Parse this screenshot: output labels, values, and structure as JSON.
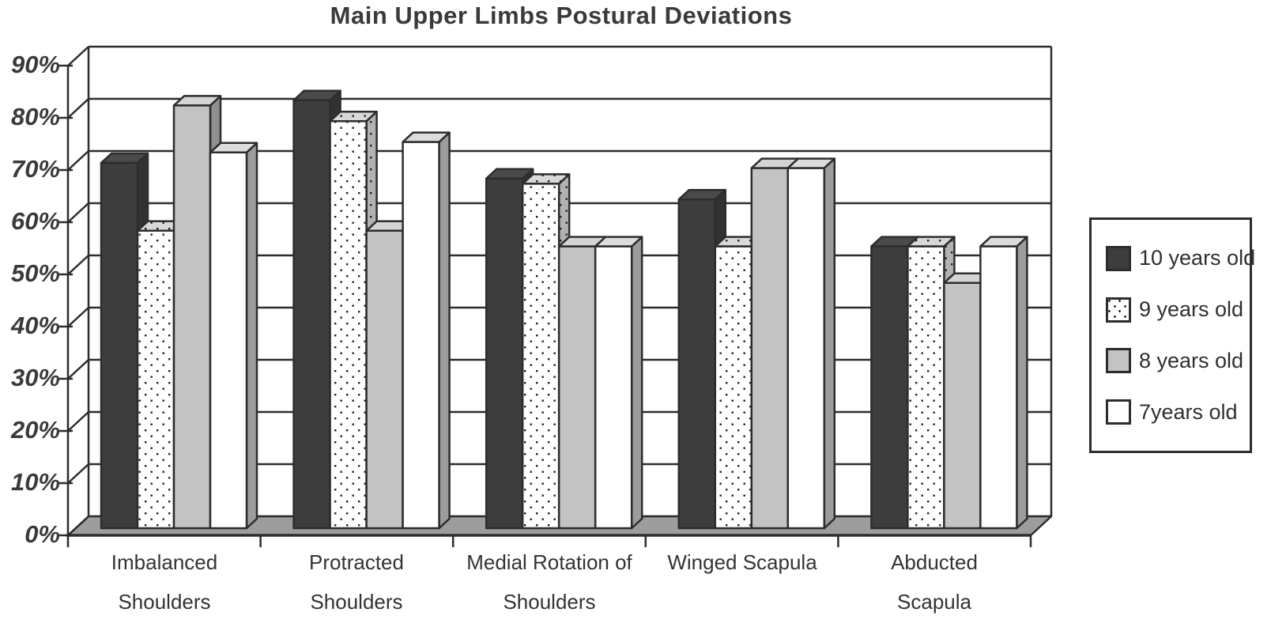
{
  "title": "Main Upper Limbs Postural Deviations",
  "chart_data": {
    "type": "bar",
    "effect": "3d-clustered-column",
    "title": "Main Upper Limbs Postural Deviations",
    "categories": [
      "Imbalanced Shoulders",
      "Protracted Shoulders",
      "Medial Rotation of Shoulders",
      "Winged Scapula",
      "Abducted Scapula"
    ],
    "category_lines": [
      [
        "Imbalanced",
        "Shoulders"
      ],
      [
        "Protracted",
        "Shoulders"
      ],
      [
        "Medial Rotation of",
        "Shoulders"
      ],
      [
        "Winged Scapula",
        ""
      ],
      [
        "Abducted",
        "Scapula"
      ]
    ],
    "series": [
      {
        "name": "10 years old",
        "style": "solid-dark",
        "color": "#3d3d3d",
        "values": [
          70,
          82,
          67,
          63,
          54
        ]
      },
      {
        "name": "9 years old",
        "style": "dotted",
        "color": "#ffffff",
        "values": [
          57,
          78,
          66,
          54,
          54
        ]
      },
      {
        "name": "8 years old",
        "style": "gray",
        "color": "#c3c3c3",
        "values": [
          81,
          57,
          54,
          69,
          47
        ]
      },
      {
        "name": "7years old",
        "style": "white",
        "color": "#ffffff",
        "values": [
          72,
          74,
          54,
          69,
          54
        ]
      }
    ],
    "unit": "%",
    "ylim": [
      0,
      90
    ],
    "y_tick_step": 10,
    "y_ticks": [
      "0%",
      "10%",
      "20%",
      "30%",
      "40%",
      "50%",
      "60%",
      "70%",
      "80%",
      "90%"
    ],
    "grid": true,
    "legend_position": "right"
  },
  "colors": {
    "outline": "#2d2d2d",
    "floor": "#9d9d9d",
    "wall": "#ffffff",
    "text": "#3a3a3a",
    "background": "#ffffff"
  }
}
